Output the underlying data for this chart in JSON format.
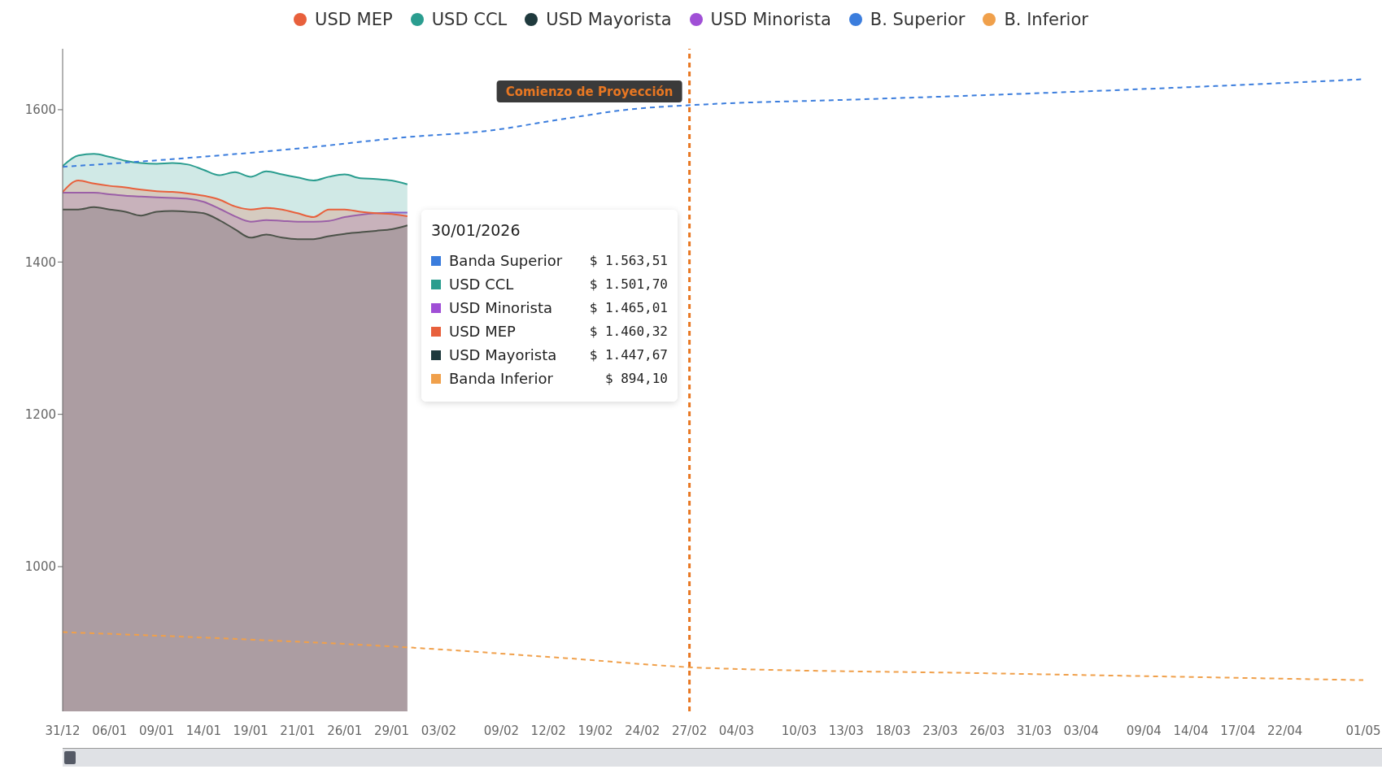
{
  "chart_data": {
    "type": "area",
    "categories": [
      "31/12",
      null,
      null,
      "06/01",
      null,
      null,
      "09/01",
      null,
      null,
      "14/01",
      null,
      null,
      "19/01",
      null,
      null,
      "21/01",
      null,
      null,
      "26/01",
      null,
      null,
      "29/01",
      null,
      null,
      "03/02",
      null,
      null,
      null,
      "09/02",
      null,
      null,
      "12/02",
      null,
      null,
      "19/02",
      null,
      null,
      "24/02",
      null,
      null,
      "27/02",
      null,
      null,
      "04/03",
      null,
      null,
      null,
      "10/03",
      null,
      null,
      "13/03",
      null,
      null,
      "18/03",
      null,
      null,
      "23/03",
      null,
      null,
      "26/03",
      null,
      null,
      "31/03",
      null,
      null,
      "03/04",
      null,
      null,
      null,
      "09/04",
      null,
      null,
      "14/04",
      null,
      null,
      "17/04",
      null,
      null,
      "22/04",
      null,
      null,
      null,
      null,
      "01/05"
    ],
    "series": [
      {
        "name": "USD MEP",
        "color": "#e8603c",
        "values": [
          1492,
          1507,
          1503,
          1500,
          1498,
          1495,
          1493,
          1492,
          1490,
          1487,
          1482,
          1473,
          1469,
          1471,
          1469,
          1464,
          1459,
          1469,
          1469,
          1466,
          1464,
          1463,
          1460,
          null,
          null,
          null,
          null,
          null,
          null,
          null,
          null,
          null,
          null,
          null,
          null,
          null,
          null,
          null,
          null,
          null,
          null,
          null,
          null,
          null,
          null,
          null,
          null,
          null,
          null,
          null,
          null,
          null,
          null,
          null,
          null,
          null,
          null,
          null,
          null,
          null,
          null,
          null,
          null,
          null,
          null,
          null,
          null,
          null,
          null,
          null,
          null,
          null,
          null,
          null,
          null,
          null,
          null,
          null,
          null,
          null,
          null,
          null,
          null,
          null
        ]
      },
      {
        "name": "USD CCL",
        "color": "#2a9d8f",
        "values": [
          1526,
          1540,
          1542,
          1538,
          1533,
          1530,
          1529,
          1530,
          1528,
          1521,
          1514,
          1518,
          1512,
          1519,
          1515,
          1511,
          1507,
          1512,
          1515,
          1510,
          1509,
          1507,
          1502,
          null,
          null,
          null,
          null,
          null,
          null,
          null,
          null,
          null,
          null,
          null,
          null,
          null,
          null,
          null,
          null,
          null,
          null,
          null,
          null,
          null,
          null,
          null,
          null,
          null,
          null,
          null,
          null,
          null,
          null,
          null,
          null,
          null,
          null,
          null,
          null,
          null,
          null,
          null,
          null,
          null,
          null,
          null,
          null,
          null,
          null,
          null,
          null,
          null,
          null,
          null,
          null,
          null,
          null,
          null,
          null,
          null,
          null,
          null,
          null,
          null
        ]
      },
      {
        "name": "USD Mayorista",
        "color": "#1f3a3d",
        "values": [
          1469,
          1469,
          1472,
          1469,
          1466,
          1461,
          1466,
          1467,
          1466,
          1464,
          1455,
          1443,
          1432,
          1436,
          1432,
          1430,
          1430,
          1434,
          1437,
          1439,
          1441,
          1443,
          1448,
          null,
          null,
          null,
          null,
          null,
          null,
          null,
          null,
          null,
          null,
          null,
          null,
          null,
          null,
          null,
          null,
          null,
          null,
          null,
          null,
          null,
          null,
          null,
          null,
          null,
          null,
          null,
          null,
          null,
          null,
          null,
          null,
          null,
          null,
          null,
          null,
          null,
          null,
          null,
          null,
          null,
          null,
          null,
          null,
          null,
          null,
          null,
          null,
          null,
          null,
          null,
          null,
          null,
          null,
          null,
          null,
          null,
          null,
          null,
          null,
          null
        ]
      },
      {
        "name": "USD Minorista",
        "color": "#a04fd6",
        "values": [
          1491,
          1491,
          1491,
          1489,
          1487,
          1486,
          1485,
          1484,
          1483,
          1479,
          1470,
          1460,
          1453,
          1455,
          1454,
          1453,
          1453,
          1454,
          1459,
          1462,
          1464,
          1465,
          1465,
          null,
          null,
          null,
          null,
          null,
          null,
          null,
          null,
          null,
          null,
          null,
          null,
          null,
          null,
          null,
          null,
          null,
          null,
          null,
          null,
          null,
          null,
          null,
          null,
          null,
          null,
          null,
          null,
          null,
          null,
          null,
          null,
          null,
          null,
          null,
          null,
          null,
          null,
          null,
          null,
          null,
          null,
          null,
          null,
          null,
          null,
          null,
          null,
          null,
          null,
          null,
          null,
          null,
          null,
          null,
          null,
          null,
          null,
          null,
          null,
          null
        ]
      },
      {
        "name": "B. Superior",
        "color": "#3b7ddd",
        "type": "line",
        "line_style": "dashed",
        "values": [
          1525,
          null,
          null,
          null,
          null,
          1532,
          null,
          null,
          null,
          null,
          1540,
          null,
          null,
          null,
          null,
          1549,
          null,
          null,
          null,
          null,
          null,
          null,
          1564,
          null,
          null,
          null,
          null,
          1572,
          null,
          null,
          null,
          null,
          1588,
          null,
          null,
          null,
          1600,
          null,
          null,
          null,
          null,
          1607,
          null,
          null,
          null,
          null,
          null,
          null,
          null,
          null,
          1613,
          null,
          null,
          null,
          null,
          null,
          null,
          null,
          null,
          null,
          1620,
          null,
          null,
          null,
          null,
          null,
          null,
          null,
          null,
          null,
          1628,
          null,
          null,
          null,
          null,
          null,
          null,
          null,
          null,
          null,
          null,
          null,
          null,
          1640
        ]
      },
      {
        "name": "B. Inferior",
        "color": "#f0a04b",
        "type": "line",
        "line_style": "dashed",
        "values": [
          914,
          null,
          null,
          null,
          null,
          null,
          null,
          null,
          null,
          null,
          906,
          null,
          null,
          null,
          null,
          null,
          null,
          null,
          null,
          null,
          null,
          null,
          894,
          null,
          null,
          null,
          null,
          null,
          null,
          null,
          null,
          null,
          880,
          null,
          null,
          null,
          null,
          null,
          null,
          null,
          null,
          867,
          null,
          null,
          null,
          null,
          null,
          null,
          null,
          null,
          null,
          null,
          null,
          null,
          null,
          null,
          null,
          null,
          null,
          860,
          null,
          null,
          null,
          null,
          null,
          null,
          null,
          null,
          null,
          null,
          null,
          null,
          null,
          null,
          null,
          null,
          null,
          null,
          null,
          null,
          null,
          null,
          null,
          851
        ]
      }
    ],
    "ylim": [
      810,
      1680
    ],
    "yticks": [
      1000,
      1200,
      1400,
      1600
    ],
    "legend": "top",
    "ref_lines": [
      {
        "axis": "x",
        "value": "27/02",
        "label": "Comienzo de Proyección",
        "color": "#e87722",
        "line_style": "dashed"
      }
    ],
    "annotations": [
      "30/01/2026",
      "Banda Superior",
      "$ 1.563,51",
      "USD CCL",
      "$ 1.501,70",
      "USD Minorista",
      "$ 1.465,01",
      "USD MEP",
      "$ 1.460,32",
      "USD Mayorista",
      "$ 1.447,67",
      "Banda Inferior",
      "$ 894,10"
    ]
  }
}
